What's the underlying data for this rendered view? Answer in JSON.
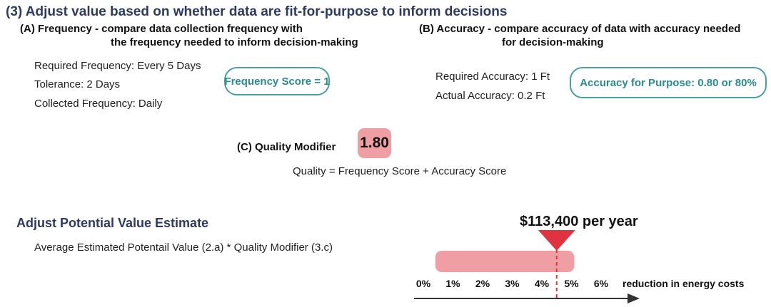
{
  "title": "(3) Adjust value based on whether data are fit-for-purpose to inform decisions",
  "frequency": {
    "heading_line1": "(A) Frequency - compare data collection frequency with",
    "heading_line2": "the frequency needed to inform decision-making",
    "required": "Required Frequency: Every 5 Days",
    "tolerance": "Tolerance: 2 Days",
    "collected": "Collected Frequency: Daily",
    "score": "Frequency Score = 1"
  },
  "accuracy": {
    "heading_line1": "(B) Accuracy - compare accuracy of data with accuracy needed",
    "heading_line2": "for decision-making",
    "required": "Required Accuracy: 1 Ft",
    "actual": "Actual Accuracy: 0.2 Ft",
    "score": "Accuracy for Purpose: 0.80 or 80%"
  },
  "quality": {
    "label": "(C) Quality Modifier",
    "value": "1.80",
    "formula": "Quality = Frequency Score + Accuracy Score"
  },
  "adjust": {
    "title": "Adjust Potential Value Estimate",
    "formula": "Average Estimated Potentail Value (2.a) * Quality Modifier (3.c)"
  },
  "scale": {
    "result_label": "$113,400 per year",
    "ticks": [
      "0%",
      "1%",
      "2%",
      "3%",
      "4%",
      "5%",
      "6%"
    ],
    "tick_values": [
      0,
      1,
      2,
      3,
      4,
      5,
      6
    ],
    "axis_label": "reduction in energy costs",
    "range_low": 0.5,
    "range_high": 5,
    "marker_value": 4.5
  },
  "colors": {
    "title": "#2d3b63",
    "teal": "#4a9fa3",
    "pink": "#ef9fa4",
    "marker": "#e0333f"
  }
}
